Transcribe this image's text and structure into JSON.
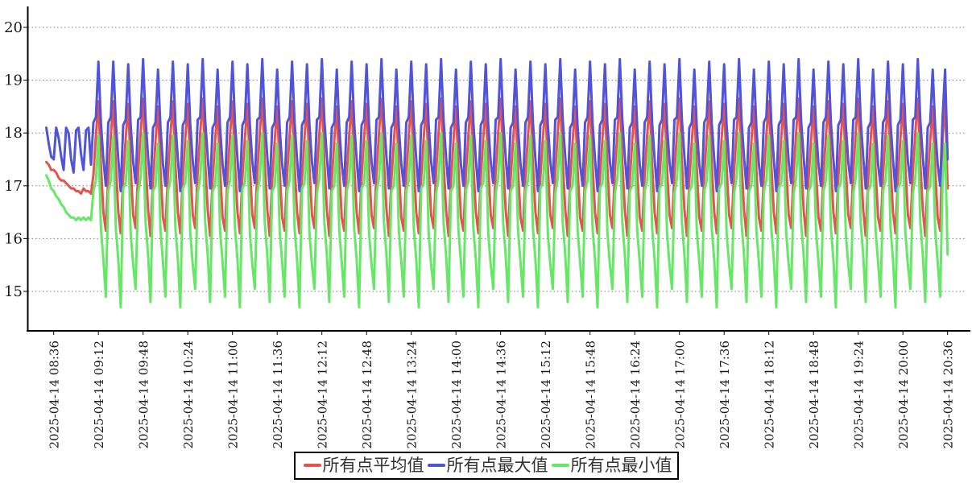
{
  "chart_data": {
    "type": "line",
    "title": "",
    "xlabel": "",
    "ylabel": "",
    "grid": "horizontal-dotted",
    "legend_position": "bottom-center",
    "y_ticks": [
      20,
      19,
      18,
      17,
      16,
      15
    ],
    "ylim": [
      14.25,
      20.4
    ],
    "x_start_label": "2025-04-14 08:30",
    "x_step_min": 2,
    "x_tick_minutes": [
      6,
      42,
      78,
      114,
      150,
      186,
      222,
      258,
      294,
      330,
      366,
      402,
      438,
      474,
      510,
      546,
      582,
      618,
      654,
      690,
      726
    ],
    "x_tick_labels": [
      "2025-04-14 08:36",
      "2025-04-14 09:12",
      "2025-04-14 09:48",
      "2025-04-14 10:24",
      "2025-04-14 11:00",
      "2025-04-14 11:36",
      "2025-04-14 12:12",
      "2025-04-14 12:48",
      "2025-04-14 13:24",
      "2025-04-14 14:00",
      "2025-04-14 14:36",
      "2025-04-14 15:12",
      "2025-04-14 15:48",
      "2025-04-14 16:24",
      "2025-04-14 17:00",
      "2025-04-14 17:36",
      "2025-04-14 18:12",
      "2025-04-14 18:48",
      "2025-04-14 19:24",
      "2025-04-14 20:00",
      "2025-04-14 20:36"
    ],
    "series": [
      {
        "name": "所有点平均值",
        "role": "average",
        "color": "#e6534e",
        "values": [
          17.45,
          17.4,
          17.3,
          17.3,
          17.25,
          17.15,
          17.1,
          17.1,
          17.05,
          17.0,
          16.95,
          16.95,
          16.9,
          16.9,
          16.85,
          16.95,
          16.9,
          16.9,
          16.85,
          17.2,
          17.95,
          18.6,
          17.4,
          16.5,
          16.15,
          17.2,
          17.95,
          18.6,
          17.4,
          16.5,
          16.1,
          17.15,
          17.9,
          18.55,
          17.35,
          16.45,
          16.2,
          17.25,
          18.0,
          18.65,
          17.45,
          16.55,
          16.05,
          17.1,
          17.85,
          18.5,
          17.3,
          16.4,
          16.15,
          17.2,
          17.95,
          18.6,
          17.4,
          16.5,
          16.1,
          17.15,
          17.9,
          18.55,
          17.35,
          16.45,
          16.2,
          17.25,
          18.0,
          18.65,
          17.45,
          16.55,
          16.05,
          17.1,
          17.85,
          18.5,
          17.3,
          16.4,
          16.15,
          17.2,
          17.95,
          18.6,
          17.4,
          16.5,
          16.1,
          17.15,
          17.9,
          18.55,
          17.35,
          16.45,
          16.2,
          17.25,
          18.0,
          18.65,
          17.45,
          16.55,
          16.05,
          17.1,
          17.85,
          18.5,
          17.3,
          16.4,
          16.15,
          17.2,
          17.95,
          18.6,
          17.4,
          16.5,
          16.1,
          17.15,
          17.9,
          18.55,
          17.35,
          16.45,
          16.2,
          17.25,
          18.0,
          18.65,
          17.45,
          16.55,
          16.05,
          17.1,
          17.85,
          18.5,
          17.3,
          16.4,
          16.15,
          17.2,
          17.95,
          18.6,
          17.4,
          16.5,
          16.1,
          17.15,
          17.9,
          18.55,
          17.35,
          16.45,
          16.2,
          17.25,
          18.0,
          18.65,
          17.45,
          16.55,
          16.05,
          17.1,
          17.85,
          18.5,
          17.3,
          16.4,
          16.15,
          17.2,
          17.95,
          18.6,
          17.4,
          16.5,
          16.1,
          17.15,
          17.9,
          18.55,
          17.35,
          16.45,
          16.2,
          17.25,
          18.0,
          18.65,
          17.45,
          16.55,
          16.05,
          17.1,
          17.85,
          18.5,
          17.3,
          16.4,
          16.15,
          17.2,
          17.95,
          18.6,
          17.4,
          16.5,
          16.1,
          17.15,
          17.9,
          18.55,
          17.35,
          16.45,
          16.2,
          17.25,
          18.0,
          18.65,
          17.45,
          16.55,
          16.05,
          17.1,
          17.85,
          18.5,
          17.3,
          16.4,
          16.15,
          17.2,
          17.95,
          18.6,
          17.4,
          16.5,
          16.1,
          17.15,
          17.9,
          18.55,
          17.35,
          16.45,
          16.2,
          17.25,
          18.0,
          18.65,
          17.45,
          16.55,
          16.05,
          17.1,
          17.85,
          18.5,
          17.3,
          16.4,
          16.15,
          17.2,
          17.95,
          18.6,
          17.4,
          16.5,
          16.1,
          17.15,
          17.9,
          18.55,
          17.35,
          16.45,
          16.2,
          17.25,
          18.0,
          18.65,
          17.45,
          16.55,
          16.05,
          17.1,
          17.85,
          18.5,
          17.3,
          16.4,
          16.15,
          17.2,
          17.95,
          18.6,
          17.4,
          16.5,
          16.1,
          17.15,
          17.9,
          18.55,
          17.35,
          16.45,
          16.2,
          17.25,
          18.0,
          18.65,
          17.45,
          16.55,
          16.05,
          17.1,
          17.85,
          18.5,
          17.3,
          16.4,
          16.15,
          17.2,
          17.95,
          18.6,
          17.4,
          16.5,
          16.1,
          17.15,
          17.9,
          18.55,
          17.35,
          16.45,
          16.2,
          17.25,
          18.0,
          18.65,
          17.45,
          16.55,
          16.05,
          17.1,
          17.85,
          18.5,
          17.3,
          16.4,
          16.15,
          17.2,
          17.95,
          18.6,
          17.4,
          16.5,
          16.1,
          17.15,
          17.9,
          18.55,
          17.35,
          16.45,
          16.2,
          17.25,
          18.0,
          18.65,
          17.45,
          16.55,
          16.05,
          17.1,
          17.85,
          18.5,
          17.3,
          16.4,
          16.15,
          17.2,
          17.95,
          18.6,
          17.4,
          16.5,
          16.1,
          17.15,
          17.9,
          18.55,
          17.35,
          16.45,
          16.2,
          17.25,
          18.0,
          18.65,
          17.45,
          16.55,
          16.05,
          17.1,
          17.85,
          18.5,
          17.3,
          16.4,
          16.15,
          17.2,
          17.95,
          18.6,
          17.4,
          16.5,
          16.1,
          17.15,
          17.9,
          18.55,
          17.35,
          16.45,
          16.2,
          17.25,
          18.0,
          18.65,
          17.45,
          16.55,
          16.05,
          17.1,
          17.85,
          18.5,
          17.3,
          16.4,
          16.15,
          17.9,
          18.6,
          16.95
        ]
      },
      {
        "name": "所有点最大值",
        "role": "maximum",
        "color": "#5153da",
        "values": [
          18.1,
          17.8,
          17.55,
          17.5,
          18.1,
          17.9,
          17.55,
          17.3,
          18.1,
          18.0,
          17.5,
          17.25,
          18.05,
          18.1,
          17.6,
          17.3,
          18.05,
          18.1,
          17.4,
          18.2,
          18.3,
          19.35,
          18.2,
          17.5,
          17.0,
          18.2,
          18.3,
          19.35,
          18.2,
          17.5,
          16.9,
          18.15,
          18.25,
          19.3,
          18.15,
          17.45,
          17.05,
          18.25,
          18.3,
          19.4,
          18.25,
          17.55,
          16.95,
          18.1,
          18.2,
          19.2,
          18.1,
          17.4,
          17.0,
          18.2,
          18.3,
          19.35,
          18.2,
          17.5,
          16.9,
          18.15,
          18.25,
          19.3,
          18.15,
          17.45,
          17.05,
          18.25,
          18.3,
          19.4,
          18.25,
          17.55,
          16.95,
          18.1,
          18.2,
          19.2,
          18.1,
          17.4,
          17.0,
          18.2,
          18.3,
          19.35,
          18.2,
          17.5,
          16.9,
          18.15,
          18.25,
          19.3,
          18.15,
          17.45,
          17.05,
          18.25,
          18.3,
          19.4,
          18.25,
          17.55,
          16.95,
          18.1,
          18.2,
          19.2,
          18.1,
          17.4,
          17.0,
          18.2,
          18.3,
          19.35,
          18.2,
          17.5,
          16.9,
          18.15,
          18.25,
          19.3,
          18.15,
          17.45,
          17.05,
          18.25,
          18.3,
          19.4,
          18.25,
          17.55,
          16.95,
          18.1,
          18.2,
          19.2,
          18.1,
          17.4,
          17.0,
          18.2,
          18.3,
          19.35,
          18.2,
          17.5,
          16.9,
          18.15,
          18.25,
          19.3,
          18.15,
          17.45,
          17.05,
          18.25,
          18.3,
          19.4,
          18.25,
          17.55,
          16.95,
          18.1,
          18.2,
          19.2,
          18.1,
          17.4,
          17.0,
          18.2,
          18.3,
          19.35,
          18.2,
          17.5,
          16.9,
          18.15,
          18.25,
          19.3,
          18.15,
          17.45,
          17.05,
          18.25,
          18.3,
          19.4,
          18.25,
          17.55,
          16.95,
          18.1,
          18.2,
          19.2,
          18.1,
          17.4,
          17.0,
          18.2,
          18.3,
          19.35,
          18.2,
          17.5,
          16.9,
          18.15,
          18.25,
          19.3,
          18.15,
          17.45,
          17.05,
          18.25,
          18.3,
          19.4,
          18.25,
          17.55,
          16.95,
          18.1,
          18.2,
          19.2,
          18.1,
          17.4,
          17.0,
          18.2,
          18.3,
          19.35,
          18.2,
          17.5,
          16.9,
          18.15,
          18.25,
          19.3,
          18.15,
          17.45,
          17.05,
          18.25,
          18.3,
          19.4,
          18.25,
          17.55,
          16.95,
          18.1,
          18.2,
          19.2,
          18.1,
          17.4,
          17.0,
          18.2,
          18.3,
          19.35,
          18.2,
          17.5,
          16.9,
          18.15,
          18.25,
          19.3,
          18.15,
          17.45,
          17.05,
          18.25,
          18.3,
          19.4,
          18.25,
          17.55,
          16.95,
          18.1,
          18.2,
          19.2,
          18.1,
          17.4,
          17.0,
          18.2,
          18.3,
          19.35,
          18.2,
          17.5,
          16.9,
          18.15,
          18.25,
          19.3,
          18.15,
          17.45,
          17.05,
          18.25,
          18.3,
          19.4,
          18.25,
          17.55,
          16.95,
          18.1,
          18.2,
          19.2,
          18.1,
          17.4,
          17.0,
          18.2,
          18.3,
          19.35,
          18.2,
          17.5,
          16.9,
          18.15,
          18.25,
          19.3,
          18.15,
          17.45,
          17.05,
          18.25,
          18.3,
          19.4,
          18.25,
          17.55,
          16.95,
          18.1,
          18.2,
          19.2,
          18.1,
          17.4,
          17.0,
          18.2,
          18.3,
          19.35,
          18.2,
          17.5,
          16.9,
          18.15,
          18.25,
          19.3,
          18.15,
          17.45,
          17.05,
          18.25,
          18.3,
          19.4,
          18.25,
          17.55,
          16.95,
          18.1,
          18.2,
          19.2,
          18.1,
          17.4,
          17.0,
          18.2,
          18.3,
          19.35,
          18.2,
          17.5,
          16.9,
          18.15,
          18.25,
          19.3,
          18.15,
          17.45,
          17.05,
          18.25,
          18.3,
          19.4,
          18.25,
          17.55,
          16.95,
          18.1,
          18.2,
          19.2,
          18.1,
          17.4,
          17.0,
          18.2,
          18.3,
          19.35,
          18.2,
          17.5,
          16.9,
          18.15,
          18.25,
          19.3,
          18.15,
          17.45,
          17.05,
          18.25,
          18.3,
          19.4,
          18.25,
          17.55,
          16.95,
          18.1,
          18.2,
          19.2,
          18.1,
          17.4,
          17.0,
          18.3,
          19.2,
          17.5
        ]
      },
      {
        "name": "所有点最小值",
        "role": "minimum",
        "color": "#66e766",
        "values": [
          17.2,
          17.1,
          16.95,
          16.9,
          16.8,
          16.75,
          16.65,
          16.6,
          16.5,
          16.45,
          16.4,
          16.4,
          16.35,
          16.4,
          16.35,
          16.4,
          16.35,
          16.4,
          16.35,
          16.9,
          17.1,
          17.95,
          16.2,
          15.6,
          14.9,
          16.9,
          17.1,
          17.95,
          16.2,
          15.6,
          14.7,
          16.95,
          17.05,
          17.85,
          16.1,
          15.5,
          15.05,
          16.85,
          17.15,
          18.0,
          16.3,
          15.7,
          14.8,
          16.9,
          17.0,
          17.8,
          16.15,
          15.55,
          14.9,
          16.9,
          17.1,
          17.95,
          16.2,
          15.6,
          14.7,
          16.95,
          17.05,
          17.85,
          16.1,
          15.5,
          15.05,
          16.85,
          17.15,
          18.0,
          16.3,
          15.7,
          14.8,
          16.9,
          17.0,
          17.8,
          16.15,
          15.55,
          14.9,
          16.9,
          17.1,
          17.95,
          16.2,
          15.6,
          14.7,
          16.95,
          17.05,
          17.85,
          16.1,
          15.5,
          15.05,
          16.85,
          17.15,
          18.0,
          16.3,
          15.7,
          14.8,
          16.9,
          17.0,
          17.8,
          16.15,
          15.55,
          14.9,
          16.9,
          17.1,
          17.95,
          16.2,
          15.6,
          14.7,
          16.95,
          17.05,
          17.85,
          16.1,
          15.5,
          15.05,
          16.85,
          17.15,
          18.0,
          16.3,
          15.7,
          14.8,
          16.9,
          17.0,
          17.8,
          16.15,
          15.55,
          14.9,
          16.9,
          17.1,
          17.95,
          16.2,
          15.6,
          14.7,
          16.95,
          17.05,
          17.85,
          16.1,
          15.5,
          15.05,
          16.85,
          17.15,
          18.0,
          16.3,
          15.7,
          14.8,
          16.9,
          17.0,
          17.8,
          16.15,
          15.55,
          14.9,
          16.9,
          17.1,
          17.95,
          16.2,
          15.6,
          14.7,
          16.95,
          17.05,
          17.85,
          16.1,
          15.5,
          15.05,
          16.85,
          17.15,
          18.0,
          16.3,
          15.7,
          14.8,
          16.9,
          17.0,
          17.8,
          16.15,
          15.55,
          14.9,
          16.9,
          17.1,
          17.95,
          16.2,
          15.6,
          14.7,
          16.95,
          17.05,
          17.85,
          16.1,
          15.5,
          15.05,
          16.85,
          17.15,
          18.0,
          16.3,
          15.7,
          14.8,
          16.9,
          17.0,
          17.8,
          16.15,
          15.55,
          14.9,
          16.9,
          17.1,
          17.95,
          16.2,
          15.6,
          14.7,
          16.95,
          17.05,
          17.85,
          16.1,
          15.5,
          15.05,
          16.85,
          17.15,
          18.0,
          16.3,
          15.7,
          14.8,
          16.9,
          17.0,
          17.8,
          16.15,
          15.55,
          14.9,
          16.9,
          17.1,
          17.95,
          16.2,
          15.6,
          14.7,
          16.95,
          17.05,
          17.85,
          16.1,
          15.5,
          15.05,
          16.85,
          17.15,
          18.0,
          16.3,
          15.7,
          14.8,
          16.9,
          17.0,
          17.8,
          16.15,
          15.55,
          14.9,
          16.9,
          17.1,
          17.95,
          16.2,
          15.6,
          14.7,
          16.95,
          17.05,
          17.85,
          16.1,
          15.5,
          15.05,
          16.85,
          17.15,
          18.0,
          16.3,
          15.7,
          14.8,
          16.9,
          17.0,
          17.8,
          16.15,
          15.55,
          14.9,
          16.9,
          17.1,
          17.95,
          16.2,
          15.6,
          14.7,
          16.95,
          17.05,
          17.85,
          16.1,
          15.5,
          15.05,
          16.85,
          17.15,
          18.0,
          16.3,
          15.7,
          14.8,
          16.9,
          17.0,
          17.8,
          16.15,
          15.55,
          14.9,
          16.9,
          17.1,
          17.95,
          16.2,
          15.6,
          14.7,
          16.95,
          17.05,
          17.85,
          16.1,
          15.5,
          15.05,
          16.85,
          17.15,
          18.0,
          16.3,
          15.7,
          14.8,
          16.9,
          17.0,
          17.8,
          16.15,
          15.55,
          14.9,
          16.9,
          17.1,
          17.95,
          16.2,
          15.6,
          14.7,
          16.95,
          17.05,
          17.85,
          16.1,
          15.5,
          15.05,
          16.85,
          17.15,
          18.0,
          16.3,
          15.7,
          14.8,
          16.9,
          17.0,
          17.8,
          16.15,
          15.55,
          14.9,
          16.9,
          17.1,
          17.95,
          16.2,
          15.6,
          14.7,
          16.95,
          17.05,
          17.85,
          16.1,
          15.5,
          15.05,
          16.85,
          17.15,
          18.0,
          16.3,
          15.7,
          14.8,
          16.9,
          17.0,
          17.8,
          16.15,
          15.55,
          14.9,
          17.1,
          17.8,
          15.7
        ]
      }
    ]
  },
  "legend": {
    "items": [
      {
        "label": "所有点平均值",
        "color": "#e6534e"
      },
      {
        "label": "所有点最大值",
        "color": "#5153da"
      },
      {
        "label": "所有点最小值",
        "color": "#66e766"
      }
    ]
  }
}
